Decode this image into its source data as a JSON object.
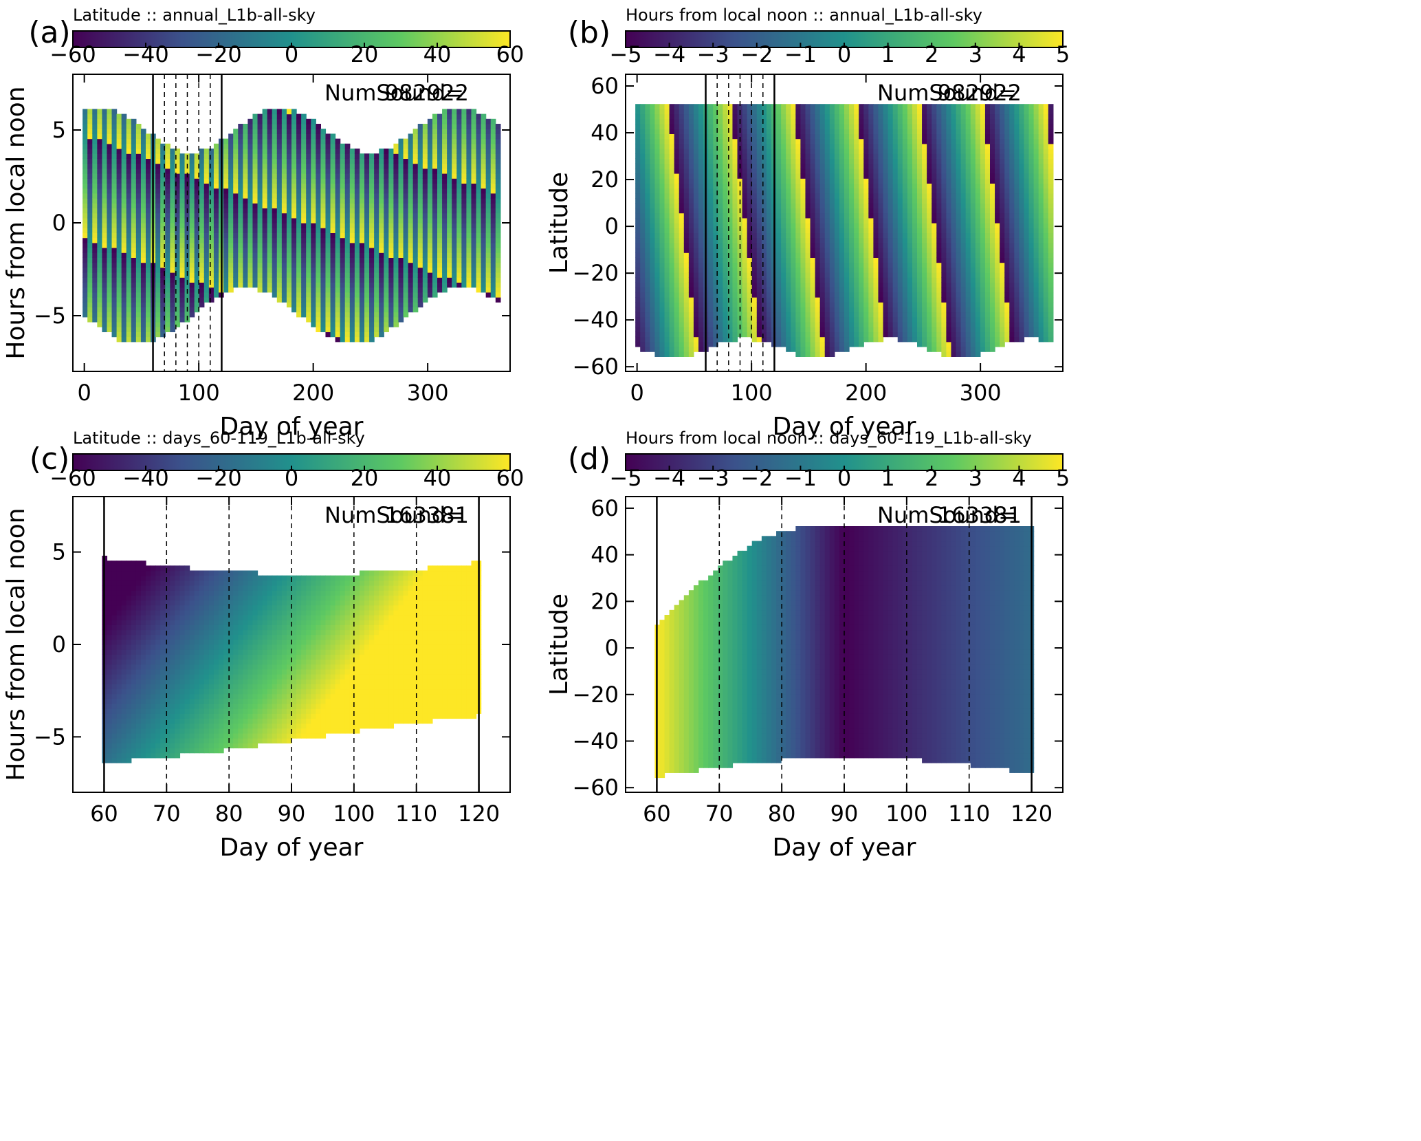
{
  "figure": "Four-panel sounding coverage plot",
  "colormap": [
    "#440154",
    "#3b528b",
    "#21918c",
    "#5ec962",
    "#fde725"
  ],
  "chart_data": [
    {
      "panel_label": "(a)",
      "type": "heatmap",
      "colorbar_title": "Latitude :: annual_L1b-all-sky",
      "colorbar_range": [
        -60,
        60
      ],
      "colorbar_ticks": [
        "−60",
        "−40",
        "−20",
        "0",
        "20",
        "40",
        "60"
      ],
      "xlabel": "Day of year",
      "ylabel": "Hours from local noon",
      "xlim": [
        -10,
        372
      ],
      "ylim": [
        -8,
        8
      ],
      "x_ticks": [
        "0",
        "100",
        "200",
        "300"
      ],
      "y_ticks": [
        "−5",
        "0",
        "5"
      ],
      "num_sound_label": "NumSound=",
      "num_sound": "982922",
      "solid_lines": [
        60,
        120
      ],
      "dashed_lines": [
        70,
        80,
        90,
        100,
        110
      ]
    },
    {
      "panel_label": "(b)",
      "type": "heatmap",
      "colorbar_title": "Hours from local noon :: annual_L1b-all-sky",
      "colorbar_range": [
        -5,
        5
      ],
      "colorbar_ticks": [
        "−5",
        "−4",
        "−3",
        "−2",
        "−1",
        "0",
        "1",
        "2",
        "3",
        "4",
        "5"
      ],
      "xlabel": "Day of year",
      "ylabel": "Latitude",
      "xlim": [
        -10,
        372
      ],
      "ylim": [
        -62,
        65
      ],
      "x_ticks": [
        "0",
        "100",
        "200",
        "300"
      ],
      "y_ticks": [
        "−60",
        "−40",
        "−20",
        "0",
        "20",
        "40",
        "60"
      ],
      "num_sound_label": "NumSound=",
      "num_sound": "982922",
      "solid_lines": [
        60,
        120
      ],
      "dashed_lines": [
        70,
        80,
        90,
        100,
        110
      ]
    },
    {
      "panel_label": "(c)",
      "type": "heatmap",
      "colorbar_title": "Latitude :: days_60-119_L1b-all-sky",
      "colorbar_range": [
        -60,
        60
      ],
      "colorbar_ticks": [
        "−60",
        "−40",
        "−20",
        "0",
        "20",
        "40",
        "60"
      ],
      "xlabel": "Day of year",
      "ylabel": "Hours from local noon",
      "xlim": [
        55,
        125
      ],
      "ylim": [
        -8,
        8
      ],
      "x_ticks": [
        "60",
        "70",
        "80",
        "90",
        "100",
        "110",
        "120"
      ],
      "y_ticks": [
        "−5",
        "0",
        "5"
      ],
      "num_sound_label": "NumSound=",
      "num_sound": "163381",
      "solid_lines": [
        60,
        120
      ],
      "dashed_lines": [
        70,
        80,
        90,
        100,
        110
      ]
    },
    {
      "panel_label": "(d)",
      "type": "heatmap",
      "colorbar_title": "Hours from local noon :: days_60-119_L1b-all-sky",
      "colorbar_range": [
        -5,
        5
      ],
      "colorbar_ticks": [
        "−5",
        "−4",
        "−3",
        "−2",
        "−1",
        "0",
        "1",
        "2",
        "3",
        "4",
        "5"
      ],
      "xlabel": "Day of year",
      "ylabel": "Latitude",
      "xlim": [
        55,
        125
      ],
      "ylim": [
        -62,
        65
      ],
      "x_ticks": [
        "60",
        "70",
        "80",
        "90",
        "100",
        "110",
        "120"
      ],
      "y_ticks": [
        "−60",
        "−40",
        "−20",
        "0",
        "20",
        "40",
        "60"
      ],
      "num_sound_label": "NumSound=",
      "num_sound": "163381",
      "solid_lines": [
        60,
        120
      ],
      "dashed_lines": [
        70,
        80,
        90,
        100,
        110
      ]
    }
  ]
}
